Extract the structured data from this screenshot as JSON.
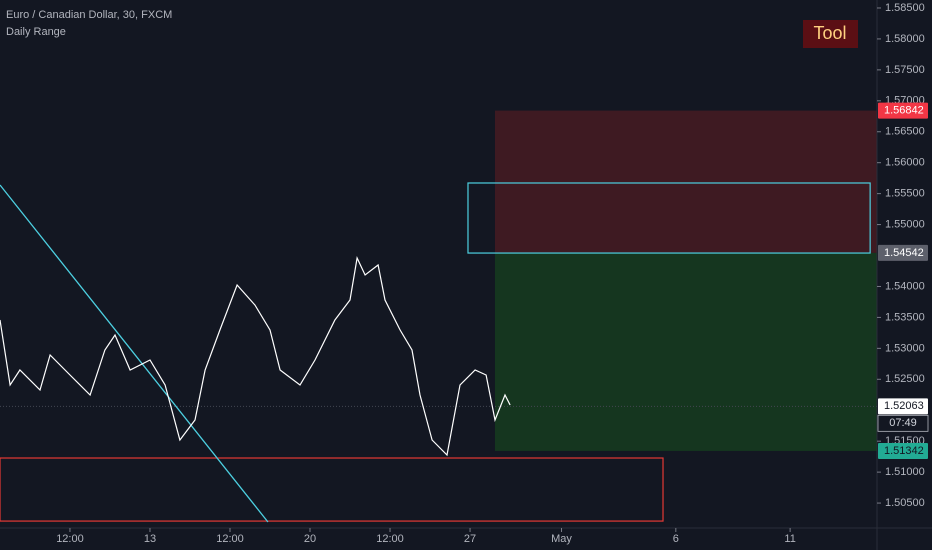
{
  "chart_data": {
    "type": "line",
    "title": "Euro / Canadian Dollar, 30, FXCM",
    "subtitle": "Daily Range",
    "button": "Tool",
    "color": "#ffffff",
    "x": [
      6.44,
      6.88,
      7.31,
      8.19,
      8.63,
      9.5,
      10.38,
      11.03,
      11.47,
      12.13,
      13.0,
      13.66,
      14.31,
      14.97,
      15.41,
      16.06,
      16.81,
      17.59,
      18.25,
      18.69,
      19.56,
      20.22,
      21.09,
      21.75,
      22.06,
      22.41,
      22.98,
      23.28,
      23.94,
      24.46,
      24.81,
      25.34,
      25.99,
      26.56,
      27.22,
      27.7,
      28.09,
      28.53,
      28.75
    ],
    "values": [
      1.53458,
      1.52407,
      1.5265,
      1.52327,
      1.52892,
      1.52569,
      1.52246,
      1.52973,
      1.53216,
      1.5265,
      1.52811,
      1.52407,
      1.51519,
      1.51842,
      1.5265,
      1.53296,
      1.54023,
      1.537,
      1.53296,
      1.5265,
      1.52407,
      1.52811,
      1.53458,
      1.53781,
      1.5446,
      1.54185,
      1.54347,
      1.53781,
      1.53296,
      1.52973,
      1.52246,
      1.51519,
      1.51276,
      1.52407,
      1.5265,
      1.52569,
      1.51842,
      1.52246,
      1.52085
    ],
    "xlim": [
      6.44,
      44.8
    ],
    "ylim": [
      1.50097,
      1.58629
    ],
    "xticks": [
      {
        "value": 9.5,
        "label": "12:00"
      },
      13,
      {
        "value": 16.5,
        "label": "12:00"
      },
      20,
      {
        "value": 23.5,
        "label": "12:00"
      },
      27,
      {
        "value": 31,
        "label": "May"
      },
      {
        "value": 36,
        "label": "6"
      },
      {
        "value": 41,
        "label": "11"
      }
    ],
    "yticks": [
      {
        "value": 1.585,
        "label": "1.58500"
      },
      {
        "value": 1.58,
        "label": "1.58000"
      },
      {
        "value": 1.575,
        "label": "1.57500"
      },
      {
        "value": 1.57,
        "label": "1.57000"
      },
      {
        "value": 1.565,
        "label": "1.56500"
      },
      {
        "value": 1.56,
        "label": "1.56000"
      },
      {
        "value": 1.555,
        "label": "1.55500"
      },
      {
        "value": 1.55,
        "label": "1.55000"
      },
      {
        "value": 1.54,
        "label": "1.54000"
      },
      {
        "value": 1.535,
        "label": "1.53500"
      },
      {
        "value": 1.53,
        "label": "1.53000"
      },
      {
        "value": 1.525,
        "label": "1.52500"
      },
      {
        "value": 1.515,
        "label": "1.51500"
      },
      {
        "value": 1.51,
        "label": "1.51000"
      },
      {
        "value": 1.505,
        "label": "1.50500"
      }
    ],
    "zones": [
      {
        "x0": 28.09,
        "top": 1.56842,
        "bottom": 1.54542,
        "color": "#3e1a22"
      },
      {
        "x0": 28.09,
        "top": 1.54542,
        "bottom": 1.51342,
        "color": "#15361f"
      }
    ],
    "boxes": [
      {
        "x0": 26.91,
        "x1": 44.5,
        "top": 1.55672,
        "bottom": 1.5454,
        "color": "#4dd0e1"
      },
      {
        "x0": 6.44,
        "x1": 35.44,
        "top": 1.51228,
        "bottom": 1.50209,
        "color": "#e53935"
      }
    ],
    "trendline": {
      "x": [
        6.44,
        18.16
      ],
      "y": [
        1.5564,
        1.50194
      ],
      "color": "#4dd0e1"
    },
    "price_labels": [
      {
        "value": 1.56842,
        "color": "#f23645",
        "text_color": "#ffffff"
      },
      {
        "value": 1.54542,
        "color": "#5d606b",
        "text_color": "#ffffff"
      },
      {
        "value": 1.52063,
        "color": "#ffffff",
        "text_color": "#131722"
      },
      {
        "value": 1.51342,
        "color": "#22ab94",
        "text_color": "#131722"
      }
    ],
    "countdown": "07:49"
  }
}
